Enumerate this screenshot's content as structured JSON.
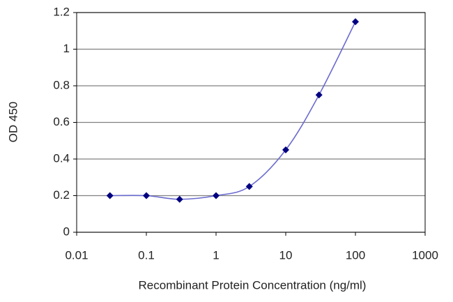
{
  "chart_data": {
    "type": "line",
    "x_label": "Recombinant Protein Concentration (ng/ml)",
    "y_label": "OD 450",
    "x": [
      0.03,
      0.1,
      0.3,
      1,
      3,
      10,
      30,
      100
    ],
    "values": [
      0.2,
      0.2,
      0.18,
      0.2,
      0.25,
      0.45,
      0.75,
      1.15
    ],
    "color": "#000080",
    "line_color": "#6b6bd0",
    "xscale": "log",
    "xlim": [
      0.01,
      1000
    ],
    "xticks": [
      0.01,
      0.1,
      1,
      10,
      100,
      1000
    ],
    "ylim": [
      0,
      1.2
    ],
    "yticks": [
      0,
      0.2,
      0.4,
      0.6,
      0.8,
      1,
      1.2
    ],
    "grid": true
  }
}
